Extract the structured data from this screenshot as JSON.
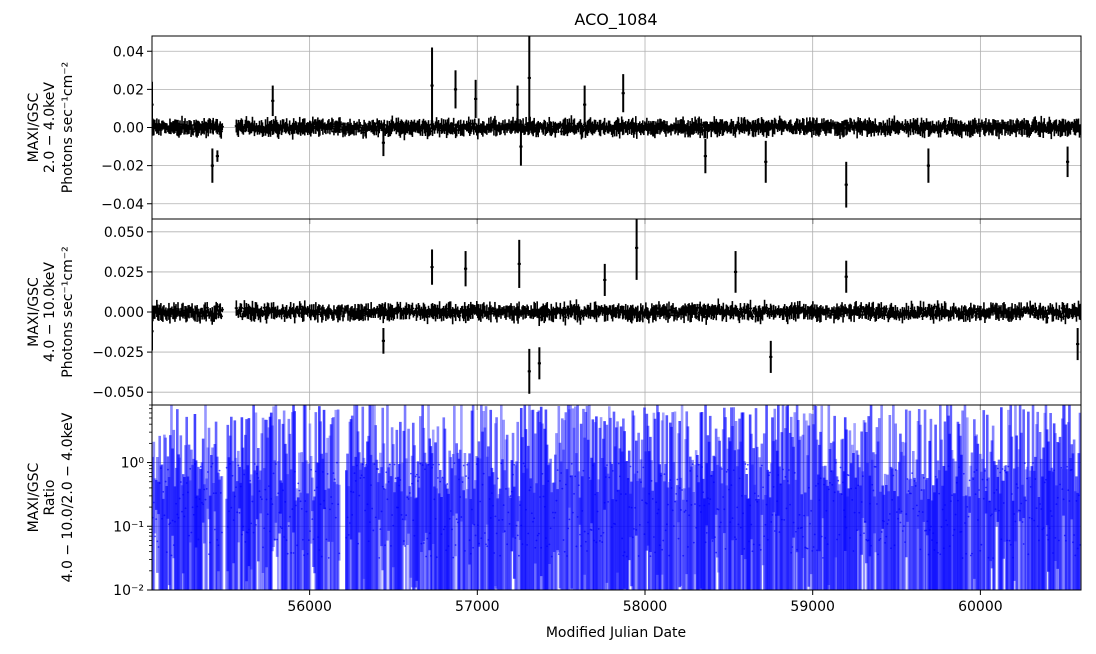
{
  "chart_data": {
    "type": "line",
    "title": "ACO_1084",
    "xlabel": "Modified Julian Date",
    "x_ticks": [
      "56000",
      "57000",
      "58000",
      "59000",
      "60000"
    ],
    "x_tick_values": [
      56000,
      57000,
      58000,
      59000,
      60000
    ],
    "xlim": [
      55060,
      60600
    ],
    "grid": true,
    "panels": [
      {
        "ylabel_lines": [
          "MAXI/GSC",
          "2.0 − 4.0keV",
          "Photons sec⁻¹cm⁻²"
        ],
        "ylim": [
          -0.048,
          0.048
        ],
        "scale": "linear",
        "y_ticks": [
          "0.04",
          "0.02",
          "0.00",
          "−0.02",
          "−0.04"
        ],
        "y_tick_values": [
          0.04,
          0.02,
          0.0,
          -0.02,
          -0.04
        ],
        "color": "#000000",
        "series": [
          {
            "x": 55060,
            "y": 0.012,
            "err": 0.012
          },
          {
            "x": 55420,
            "y": -0.02,
            "err": 0.009
          },
          {
            "x": 55450,
            "y": -0.015,
            "err": 0.003
          },
          {
            "x": 55780,
            "y": 0.014,
            "err": 0.008
          },
          {
            "x": 56440,
            "y": -0.008,
            "err": 0.007
          },
          {
            "x": 56730,
            "y": 0.022,
            "err": 0.02
          },
          {
            "x": 56870,
            "y": 0.02,
            "err": 0.01
          },
          {
            "x": 56990,
            "y": 0.015,
            "err": 0.01
          },
          {
            "x": 57240,
            "y": 0.012,
            "err": 0.01
          },
          {
            "x": 57260,
            "y": -0.01,
            "err": 0.01
          },
          {
            "x": 57310,
            "y": 0.026,
            "err": 0.022
          },
          {
            "x": 57640,
            "y": 0.012,
            "err": 0.01
          },
          {
            "x": 57870,
            "y": 0.018,
            "err": 0.01
          },
          {
            "x": 58360,
            "y": -0.015,
            "err": 0.009
          },
          {
            "x": 58720,
            "y": -0.018,
            "err": 0.011
          },
          {
            "x": 59200,
            "y": -0.03,
            "err": 0.012
          },
          {
            "x": 59690,
            "y": -0.02,
            "err": 0.009
          },
          {
            "x": 60520,
            "y": -0.018,
            "err": 0.008
          }
        ]
      },
      {
        "ylabel_lines": [
          "MAXI/GSC",
          "4.0 − 10.0keV",
          "Photons sec⁻¹cm⁻²"
        ],
        "ylim": [
          -0.058,
          0.058
        ],
        "scale": "linear",
        "y_ticks": [
          "0.050",
          "0.025",
          "0.000",
          "−0.025",
          "−0.050"
        ],
        "y_tick_values": [
          0.05,
          0.025,
          0.0,
          -0.025,
          -0.05
        ],
        "color": "#000000",
        "series": [
          {
            "x": 55060,
            "y": -0.012,
            "err": 0.012
          },
          {
            "x": 56440,
            "y": -0.018,
            "err": 0.008
          },
          {
            "x": 56730,
            "y": 0.028,
            "err": 0.011
          },
          {
            "x": 56930,
            "y": 0.027,
            "err": 0.011
          },
          {
            "x": 57250,
            "y": 0.03,
            "err": 0.015
          },
          {
            "x": 57310,
            "y": -0.037,
            "err": 0.014
          },
          {
            "x": 57370,
            "y": -0.032,
            "err": 0.01
          },
          {
            "x": 57760,
            "y": 0.02,
            "err": 0.01
          },
          {
            "x": 57950,
            "y": 0.04,
            "err": 0.02
          },
          {
            "x": 58540,
            "y": 0.025,
            "err": 0.013
          },
          {
            "x": 58750,
            "y": -0.028,
            "err": 0.01
          },
          {
            "x": 59200,
            "y": 0.022,
            "err": 0.01
          },
          {
            "x": 60580,
            "y": -0.02,
            "err": 0.01
          }
        ]
      },
      {
        "ylabel_lines": [
          "MAXI/GSC",
          "Ratio",
          "4.0 − 10.0/2.0 − 4.0keV"
        ],
        "ylim": [
          0.01,
          8
        ],
        "scale": "log",
        "y_ticks": [
          "10⁰",
          "10⁻¹",
          "10⁻²"
        ],
        "y_tick_values": [
          1,
          0.1,
          0.01
        ],
        "color": "#0000ff"
      }
    ]
  }
}
